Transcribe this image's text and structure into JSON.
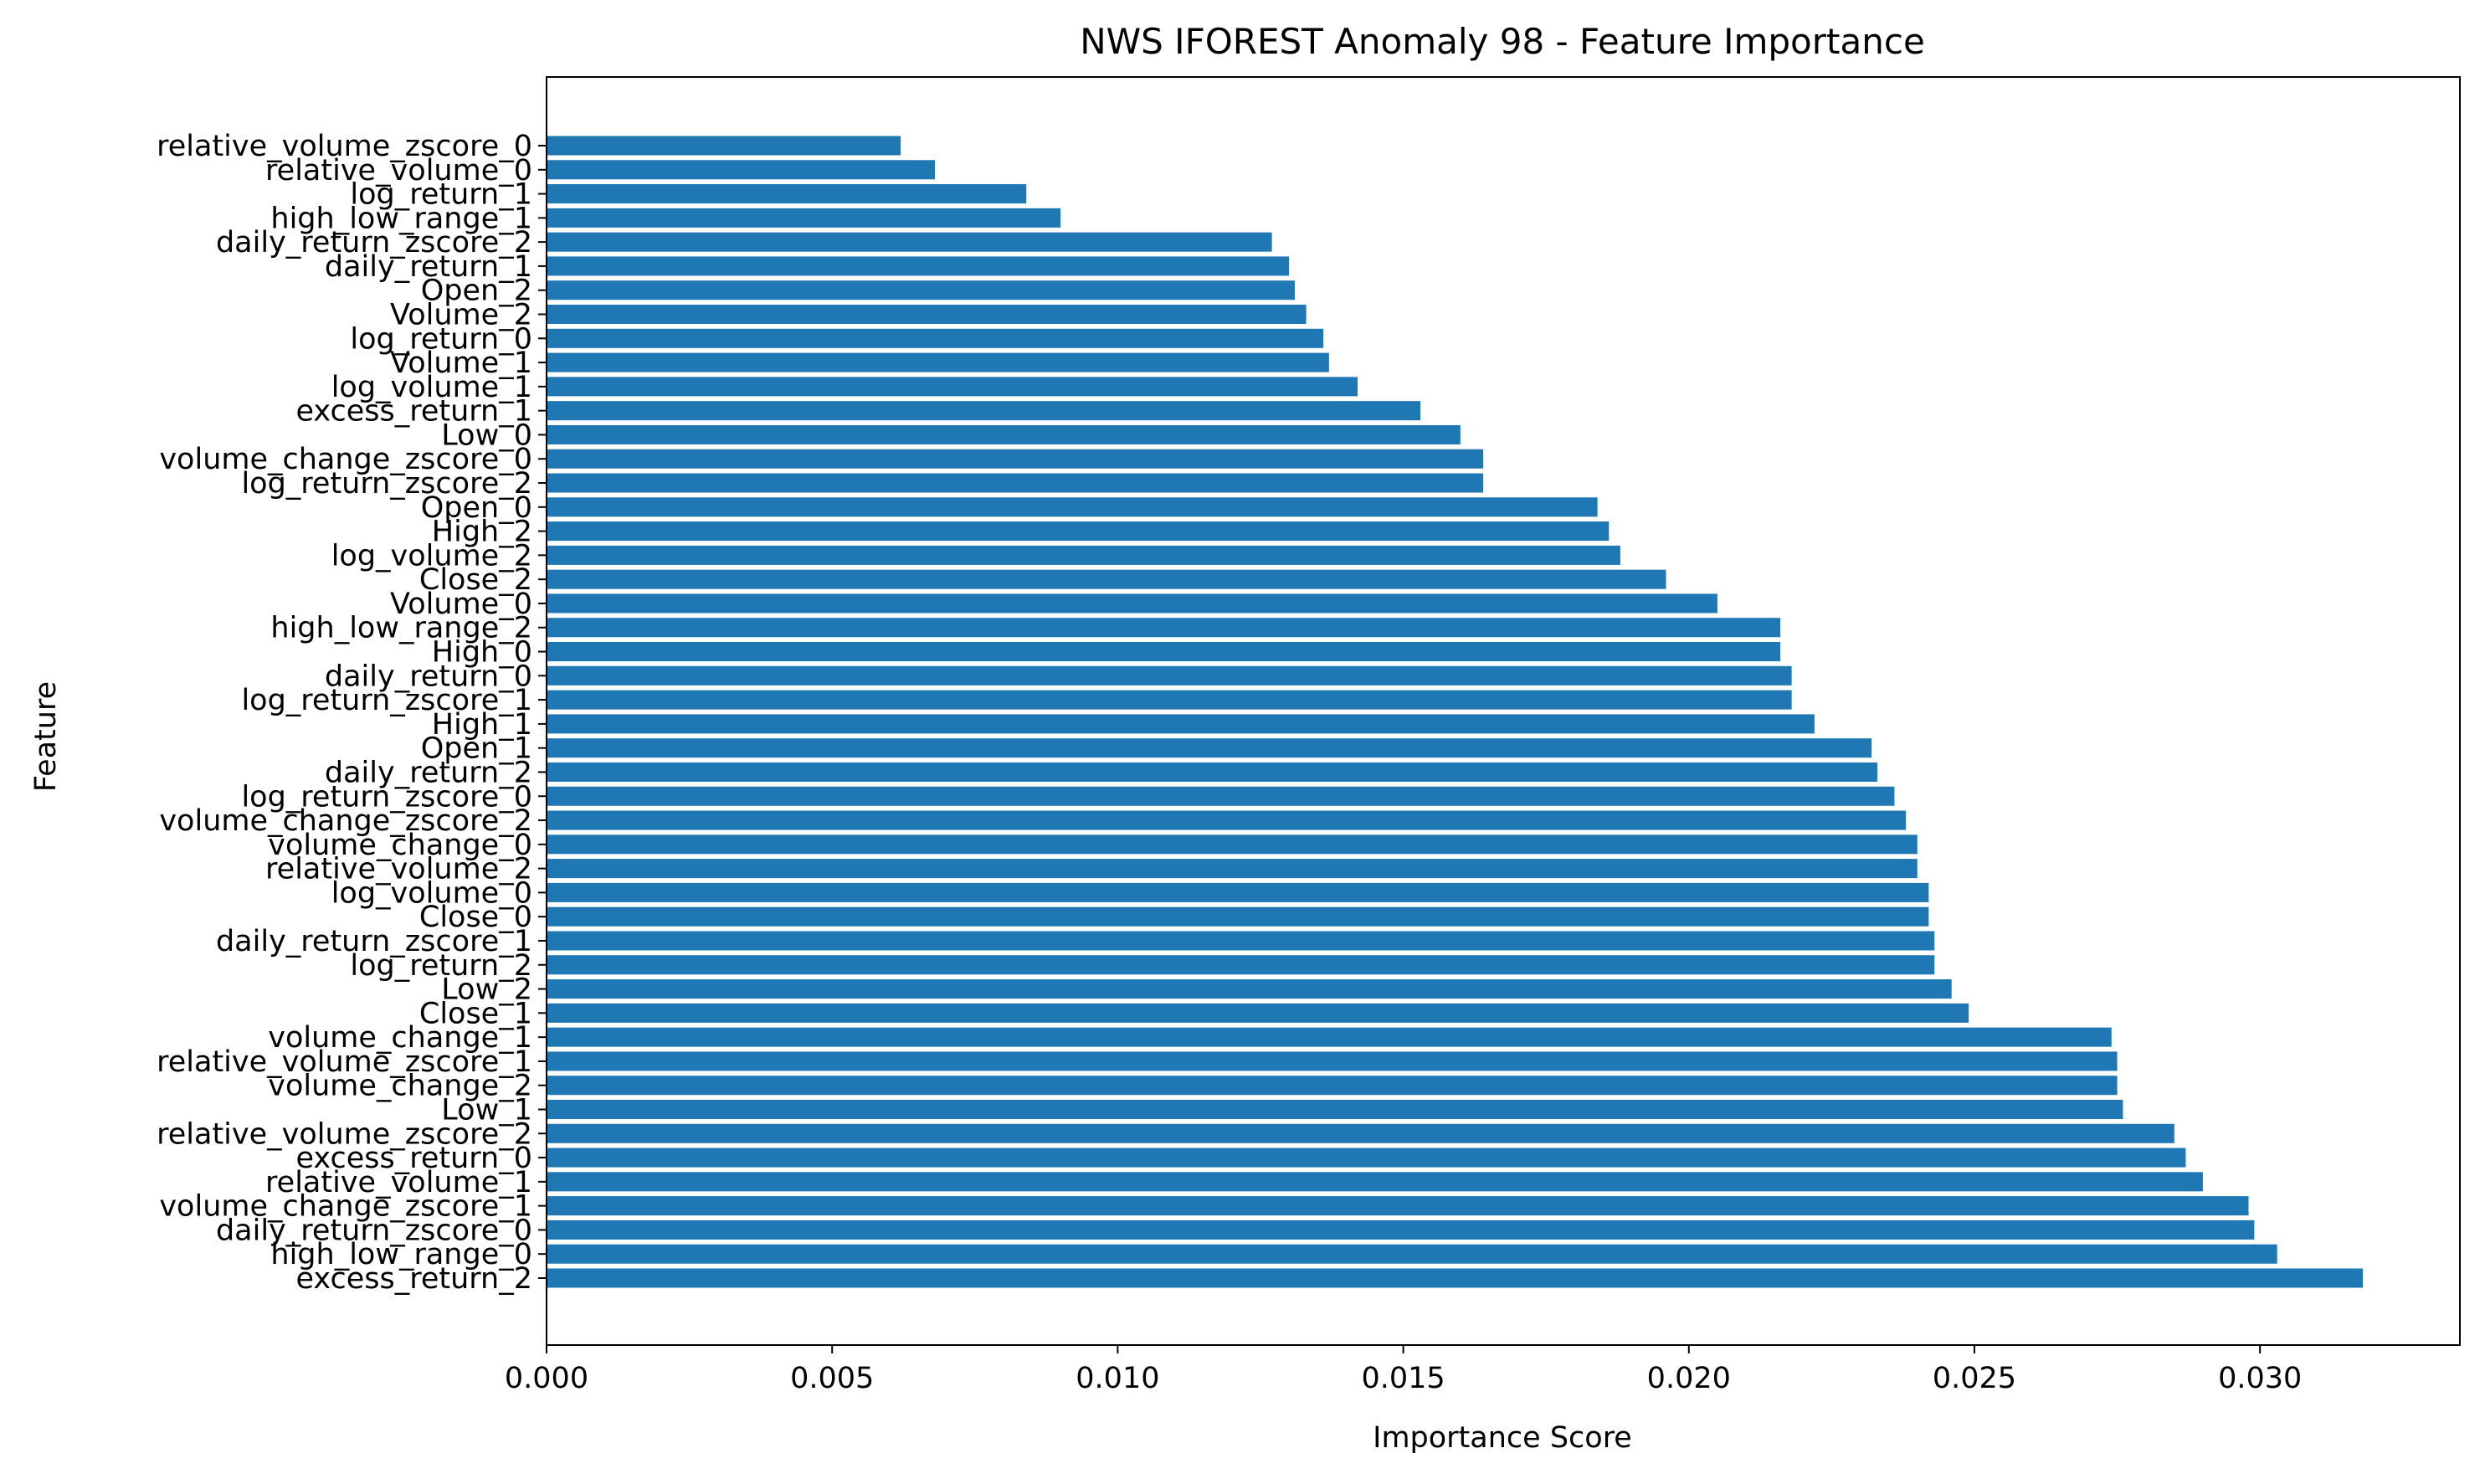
{
  "chart_data": {
    "type": "bar",
    "orientation": "horizontal",
    "title": "NWS IFOREST Anomaly 98 - Feature Importance",
    "xlabel": "Importance Score",
    "ylabel": "Feature",
    "xlim": [
      0,
      0.0335
    ],
    "grid": false,
    "bar_color": "#1f77b4",
    "xticks": [
      "0.000",
      "0.005",
      "0.010",
      "0.015",
      "0.020",
      "0.025",
      "0.030"
    ],
    "xtick_values": [
      0,
      0.005,
      0.01,
      0.015,
      0.02,
      0.025,
      0.03
    ],
    "categories": [
      "relative_volume_zscore_0",
      "relative_volume_0",
      "log_return_1",
      "high_low_range_1",
      "daily_return_zscore_2",
      "daily_return_1",
      "Open_2",
      "Volume_2",
      "log_return_0",
      "Volume_1",
      "log_volume_1",
      "excess_return_1",
      "Low_0",
      "volume_change_zscore_0",
      "log_return_zscore_2",
      "Open_0",
      "High_2",
      "log_volume_2",
      "Close_2",
      "Volume_0",
      "high_low_range_2",
      "High_0",
      "daily_return_0",
      "log_return_zscore_1",
      "High_1",
      "Open_1",
      "daily_return_2",
      "log_return_zscore_0",
      "volume_change_zscore_2",
      "volume_change_0",
      "relative_volume_2",
      "log_volume_0",
      "Close_0",
      "daily_return_zscore_1",
      "log_return_2",
      "Low_2",
      "Close_1",
      "volume_change_1",
      "relative_volume_zscore_1",
      "volume_change_2",
      "Low_1",
      "relative_volume_zscore_2",
      "excess_return_0",
      "relative_volume_1",
      "volume_change_zscore_1",
      "daily_return_zscore_0",
      "high_low_range_0",
      "excess_return_2"
    ],
    "values": [
      0.0062,
      0.0068,
      0.0084,
      0.009,
      0.0127,
      0.013,
      0.0131,
      0.0133,
      0.0136,
      0.0137,
      0.0142,
      0.0153,
      0.016,
      0.0164,
      0.0164,
      0.0184,
      0.0186,
      0.0188,
      0.0196,
      0.0205,
      0.0216,
      0.0216,
      0.0218,
      0.0218,
      0.0222,
      0.0232,
      0.0233,
      0.0236,
      0.0238,
      0.024,
      0.024,
      0.0242,
      0.0242,
      0.0243,
      0.0243,
      0.0246,
      0.0249,
      0.0274,
      0.0275,
      0.0275,
      0.0276,
      0.0285,
      0.0287,
      0.029,
      0.0298,
      0.0299,
      0.0303,
      0.0318
    ]
  }
}
